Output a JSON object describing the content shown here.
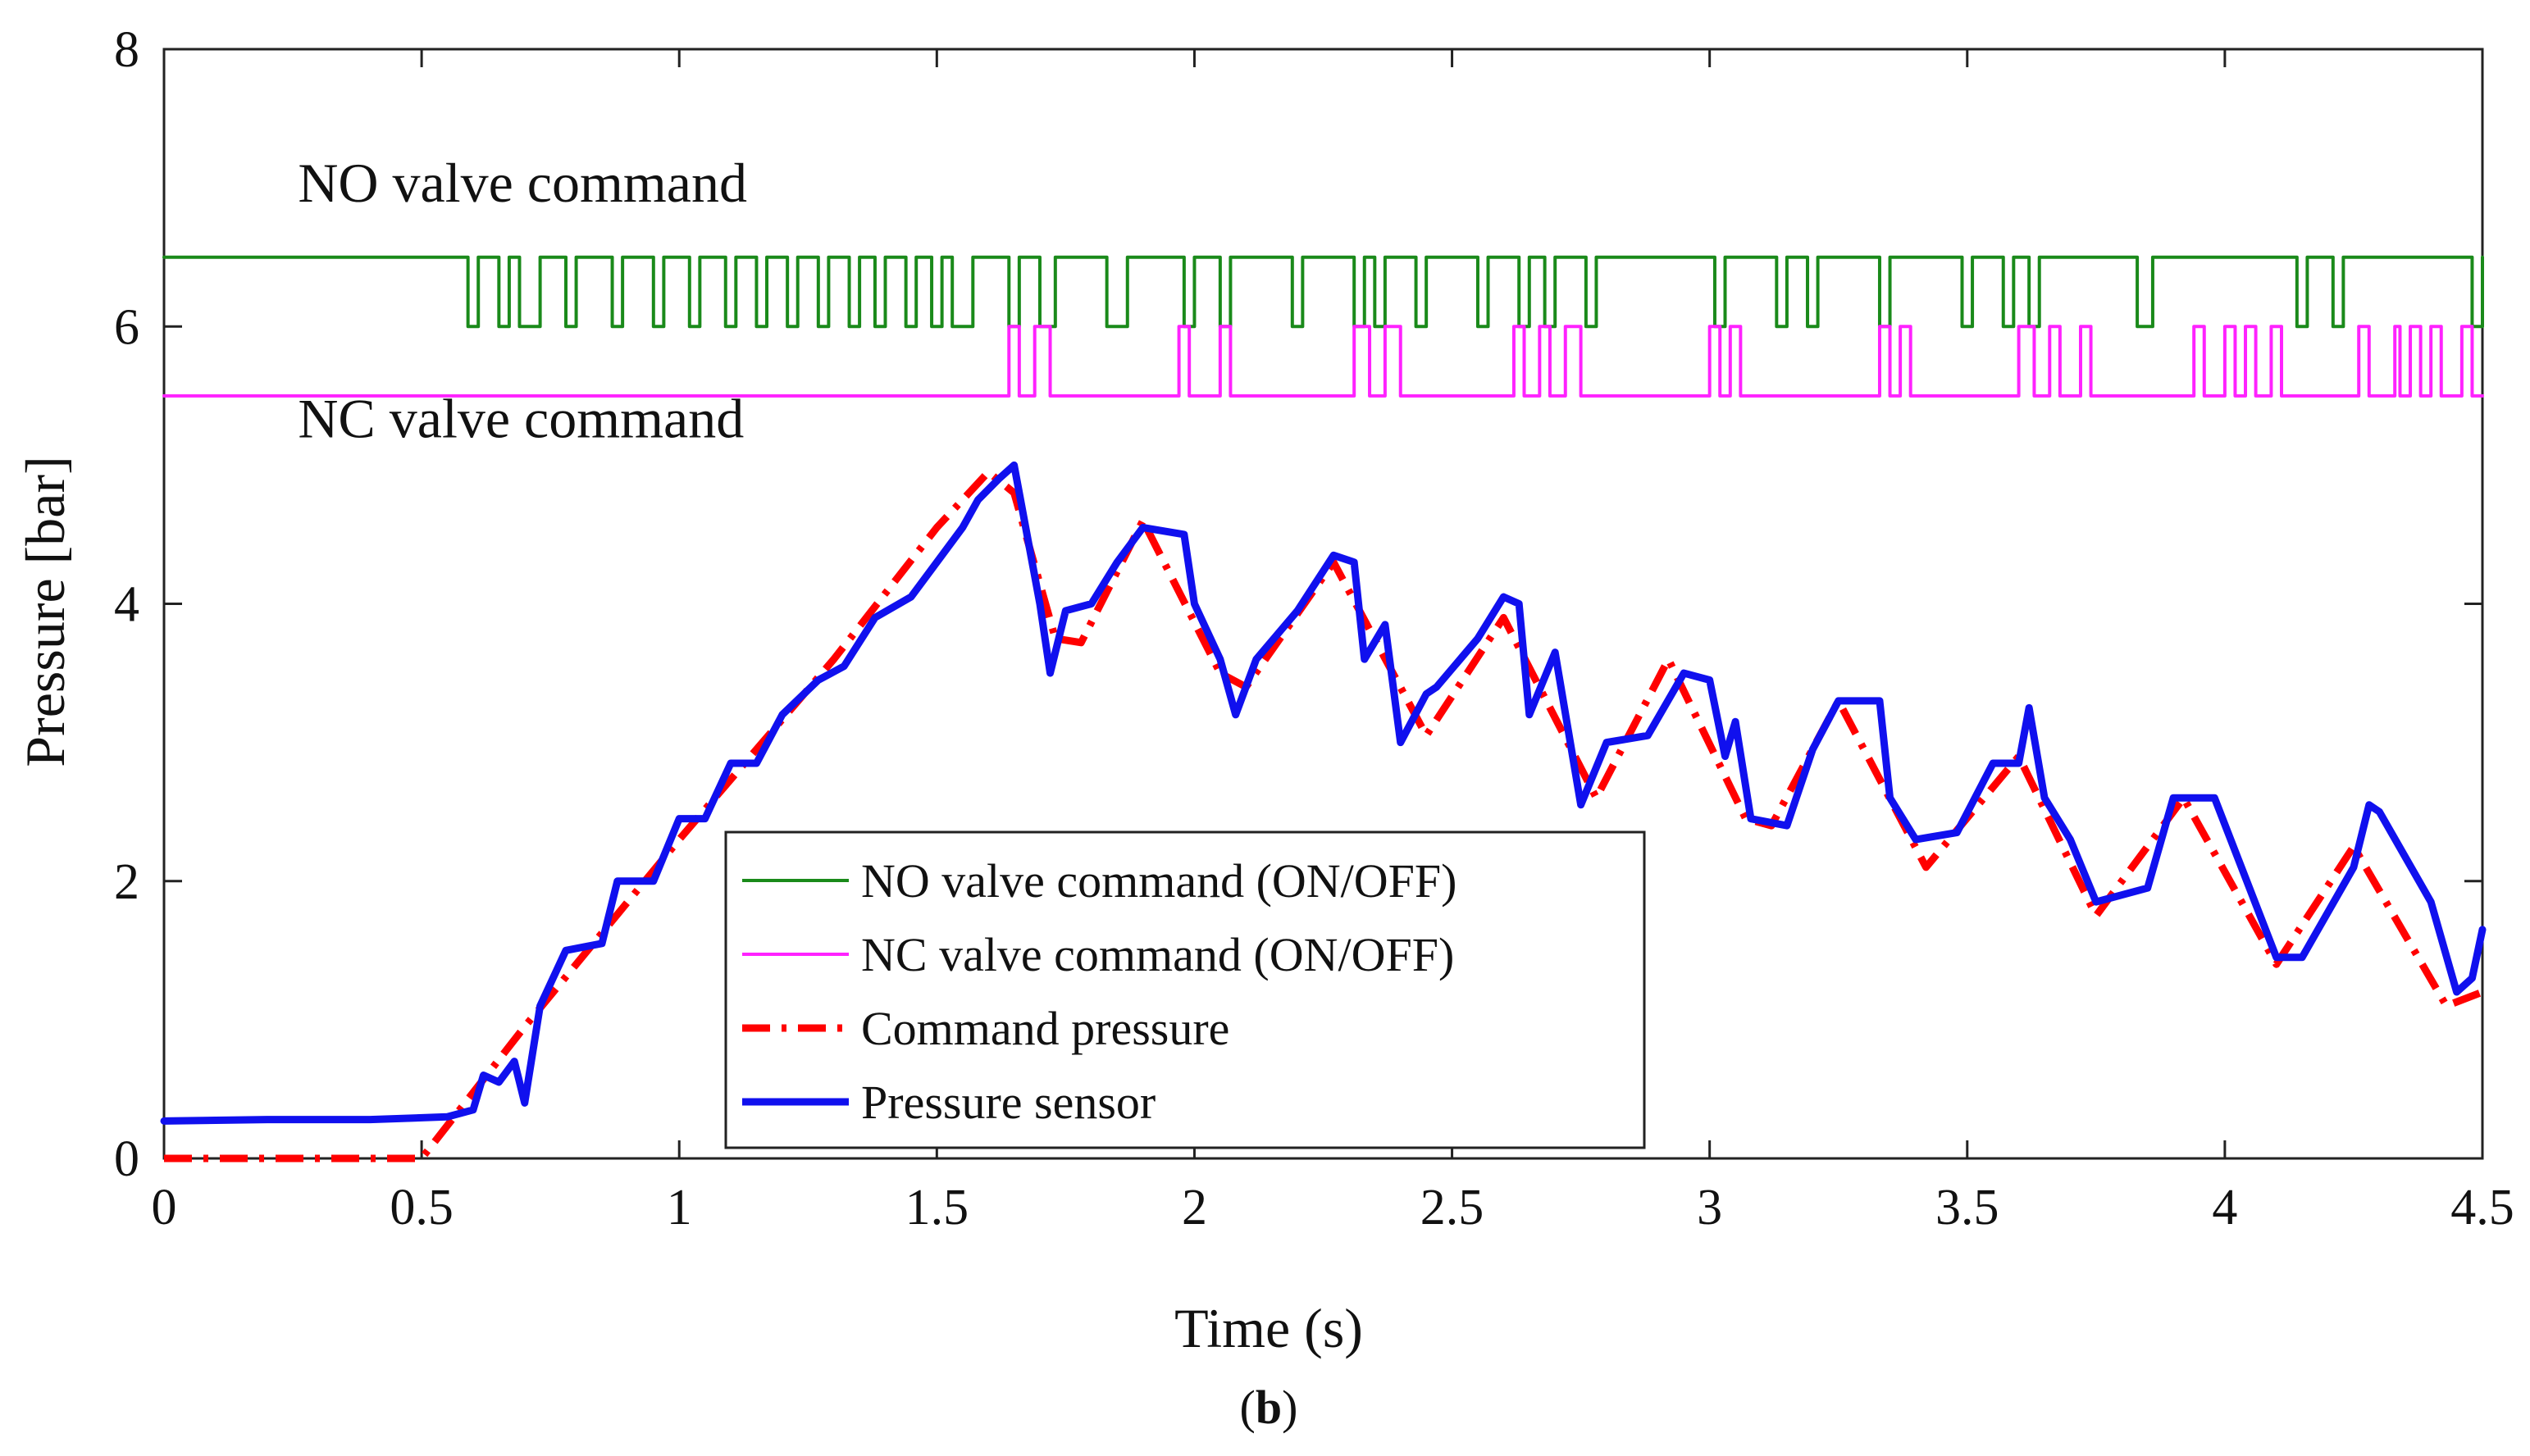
{
  "chart_data": {
    "type": "line",
    "title": "",
    "xlabel": "Time (s)",
    "ylabel": "Pressure [bar]",
    "caption_open": "(",
    "caption_letter": "b",
    "caption_close": ")",
    "xlim": [
      0,
      4.5
    ],
    "ylim": [
      0,
      8
    ],
    "x_ticks": [
      0,
      0.5,
      1,
      1.5,
      2,
      2.5,
      3,
      3.5,
      4,
      4.5
    ],
    "x_tick_labels": [
      "0",
      "0.5",
      "1",
      "1.5",
      "2",
      "2.5",
      "3",
      "3.5",
      "4",
      "4.5"
    ],
    "y_ticks": [
      0,
      2,
      4,
      6,
      8
    ],
    "y_tick_labels": [
      "0",
      "2",
      "4",
      "6",
      "8"
    ],
    "grid": false,
    "legend_position": "center-left",
    "annotations": [
      {
        "text": "NO valve command",
        "x": 0.26,
        "y": 6.9
      },
      {
        "text": "NC valve command",
        "x": 0.26,
        "y": 5.2
      }
    ],
    "series": [
      {
        "name": "NO valve command (ON/OFF)",
        "color": "#1a8a1a",
        "style": "solid",
        "kind": "step",
        "high": 6.5,
        "low": 6.0,
        "low_intervals": [
          [
            0.59,
            0.61
          ],
          [
            0.65,
            0.67
          ],
          [
            0.69,
            0.73
          ],
          [
            0.78,
            0.8
          ],
          [
            0.87,
            0.89
          ],
          [
            0.95,
            0.97
          ],
          [
            1.02,
            1.04
          ],
          [
            1.09,
            1.11
          ],
          [
            1.15,
            1.17
          ],
          [
            1.21,
            1.23
          ],
          [
            1.27,
            1.29
          ],
          [
            1.33,
            1.35
          ],
          [
            1.38,
            1.4
          ],
          [
            1.44,
            1.46
          ],
          [
            1.49,
            1.51
          ],
          [
            1.53,
            1.57
          ],
          [
            1.64,
            1.66
          ],
          [
            1.7,
            1.73
          ],
          [
            1.83,
            1.87
          ],
          [
            1.98,
            2.0
          ],
          [
            2.05,
            2.07
          ],
          [
            2.19,
            2.21
          ],
          [
            2.31,
            2.33
          ],
          [
            2.35,
            2.37
          ],
          [
            2.43,
            2.45
          ],
          [
            2.55,
            2.57
          ],
          [
            2.63,
            2.65
          ],
          [
            2.68,
            2.7
          ],
          [
            2.76,
            2.78
          ],
          [
            3.01,
            3.03
          ],
          [
            3.13,
            3.15
          ],
          [
            3.19,
            3.21
          ],
          [
            3.33,
            3.35
          ],
          [
            3.49,
            3.51
          ],
          [
            3.57,
            3.59
          ],
          [
            3.62,
            3.64
          ],
          [
            3.83,
            3.86
          ],
          [
            4.14,
            4.16
          ],
          [
            4.21,
            4.23
          ],
          [
            4.48,
            4.5
          ]
        ]
      },
      {
        "name": "NC valve command (ON/OFF)",
        "color": "#ff22ff",
        "style": "solid",
        "kind": "step",
        "high": 6.0,
        "low": 5.5,
        "base": 5.5,
        "high_intervals": [
          [
            1.64,
            1.66
          ],
          [
            1.69,
            1.72
          ],
          [
            1.97,
            1.99
          ],
          [
            2.05,
            2.07
          ],
          [
            2.31,
            2.34
          ],
          [
            2.37,
            2.4
          ],
          [
            2.62,
            2.64
          ],
          [
            2.67,
            2.69
          ],
          [
            2.72,
            2.75
          ],
          [
            3.0,
            3.02
          ],
          [
            3.04,
            3.06
          ],
          [
            3.33,
            3.35
          ],
          [
            3.37,
            3.39
          ],
          [
            3.6,
            3.63
          ],
          [
            3.66,
            3.68
          ],
          [
            3.72,
            3.74
          ],
          [
            3.94,
            3.96
          ],
          [
            4.0,
            4.02
          ],
          [
            4.04,
            4.06
          ],
          [
            4.09,
            4.11
          ],
          [
            4.26,
            4.28
          ],
          [
            4.33,
            4.34
          ],
          [
            4.36,
            4.38
          ],
          [
            4.4,
            4.42
          ],
          [
            4.46,
            4.48
          ]
        ]
      },
      {
        "name": "Command pressure",
        "color": "#ff0000",
        "style": "dashdot",
        "kind": "line",
        "x": [
          0,
          0.5,
          0.7,
          1.0,
          1.3,
          1.5,
          1.6,
          1.65,
          1.73,
          1.78,
          1.9,
          2.05,
          2.1,
          2.27,
          2.45,
          2.6,
          2.78,
          2.92,
          3.07,
          3.12,
          3.25,
          3.42,
          3.6,
          3.75,
          3.92,
          4.1,
          4.25,
          4.43,
          4.5
        ],
        "y": [
          0,
          0,
          0.95,
          2.3,
          3.6,
          4.55,
          4.95,
          4.8,
          3.75,
          3.72,
          4.6,
          3.5,
          3.4,
          4.3,
          3.05,
          3.9,
          2.6,
          3.6,
          2.45,
          2.4,
          3.3,
          2.1,
          2.9,
          1.75,
          2.6,
          1.4,
          2.25,
          1.1,
          1.2
        ]
      },
      {
        "name": "Pressure sensor",
        "color": "#1010ee",
        "style": "solid",
        "kind": "line",
        "x": [
          0,
          0.2,
          0.4,
          0.55,
          0.6,
          0.62,
          0.65,
          0.68,
          0.7,
          0.73,
          0.78,
          0.85,
          0.88,
          0.95,
          1.0,
          1.05,
          1.1,
          1.15,
          1.2,
          1.27,
          1.32,
          1.38,
          1.45,
          1.5,
          1.55,
          1.58,
          1.62,
          1.65,
          1.7,
          1.72,
          1.75,
          1.8,
          1.85,
          1.9,
          1.98,
          2.0,
          2.05,
          2.08,
          2.12,
          2.2,
          2.27,
          2.31,
          2.33,
          2.37,
          2.4,
          2.45,
          2.47,
          2.55,
          2.6,
          2.63,
          2.65,
          2.7,
          2.75,
          2.8,
          2.88,
          2.95,
          3.0,
          3.03,
          3.05,
          3.08,
          3.15,
          3.2,
          3.25,
          3.33,
          3.35,
          3.4,
          3.48,
          3.55,
          3.6,
          3.62,
          3.65,
          3.7,
          3.75,
          3.85,
          3.9,
          3.98,
          4.1,
          4.15,
          4.25,
          4.28,
          4.3,
          4.4,
          4.45,
          4.48,
          4.5
        ],
        "y": [
          0.27,
          0.28,
          0.28,
          0.3,
          0.35,
          0.6,
          0.55,
          0.7,
          0.4,
          1.1,
          1.5,
          1.55,
          2.0,
          2.0,
          2.45,
          2.45,
          2.85,
          2.85,
          3.2,
          3.45,
          3.55,
          3.9,
          4.05,
          4.3,
          4.55,
          4.75,
          4.9,
          5.0,
          4.0,
          3.5,
          3.95,
          4.0,
          4.3,
          4.55,
          4.5,
          4.0,
          3.6,
          3.2,
          3.6,
          3.95,
          4.35,
          4.3,
          3.6,
          3.85,
          3.0,
          3.35,
          3.4,
          3.75,
          4.05,
          4.0,
          3.2,
          3.65,
          2.55,
          3.0,
          3.05,
          3.5,
          3.45,
          2.9,
          3.15,
          2.45,
          2.4,
          2.95,
          3.3,
          3.3,
          2.6,
          2.3,
          2.35,
          2.85,
          2.85,
          3.25,
          2.6,
          2.3,
          1.85,
          1.95,
          2.6,
          2.6,
          1.45,
          1.45,
          2.1,
          2.55,
          2.5,
          1.85,
          1.2,
          1.3,
          1.65
        ]
      }
    ]
  }
}
